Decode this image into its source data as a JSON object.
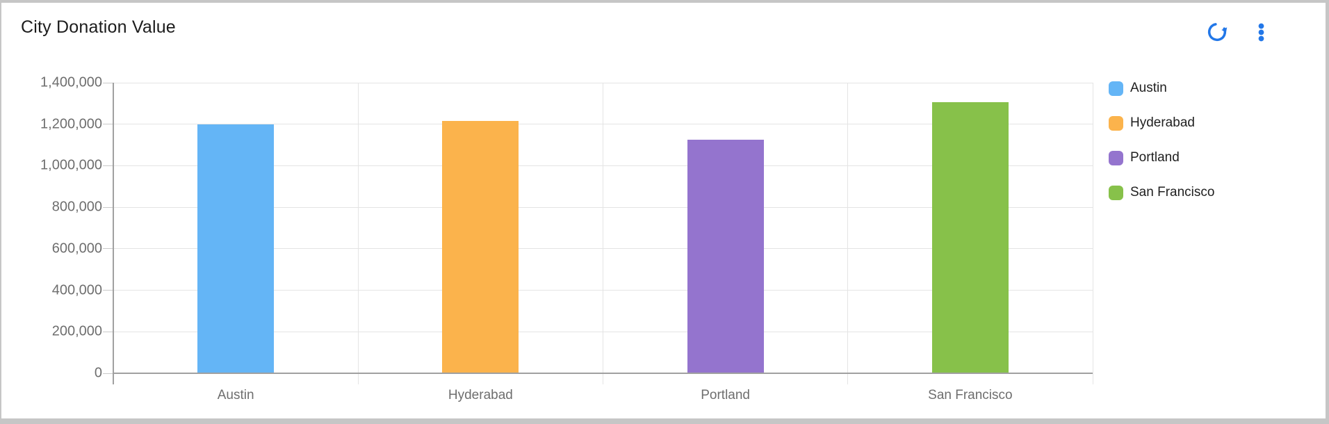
{
  "window": {
    "border_color": "#c6c6c6",
    "background": "#ffffff"
  },
  "header": {
    "title": "City Donation Value",
    "actions": {
      "refresh": "Refresh",
      "menu": "More options"
    },
    "icon_color": "#2277E8"
  },
  "chart_data": {
    "type": "bar",
    "title": "City Donation Value",
    "categories": [
      "Austin",
      "Hyderabad",
      "Portland",
      "San Francisco"
    ],
    "values": [
      1200000,
      1215000,
      1125000,
      1305000
    ],
    "bar_colors": [
      "#64B5F6",
      "#FBB34C",
      "#9474CE",
      "#87C14A"
    ],
    "xlabel": "",
    "ylabel": "",
    "ylim": [
      0,
      1400000
    ],
    "ytick_step": 200000,
    "ytick_labels": [
      "0",
      "200,000",
      "400,000",
      "600,000",
      "800,000",
      "1,000,000",
      "1,200,000",
      "1,400,000"
    ],
    "grid": true,
    "legend_position": "right",
    "legend_entries": [
      "Austin",
      "Hyderabad",
      "Portland",
      "San Francisco"
    ],
    "axis_colors": {
      "gridline": "#e4e4e4",
      "axis_line": "#a0a0a0",
      "tick": "#c9c9c9",
      "label": "#6e6e6e"
    }
  }
}
